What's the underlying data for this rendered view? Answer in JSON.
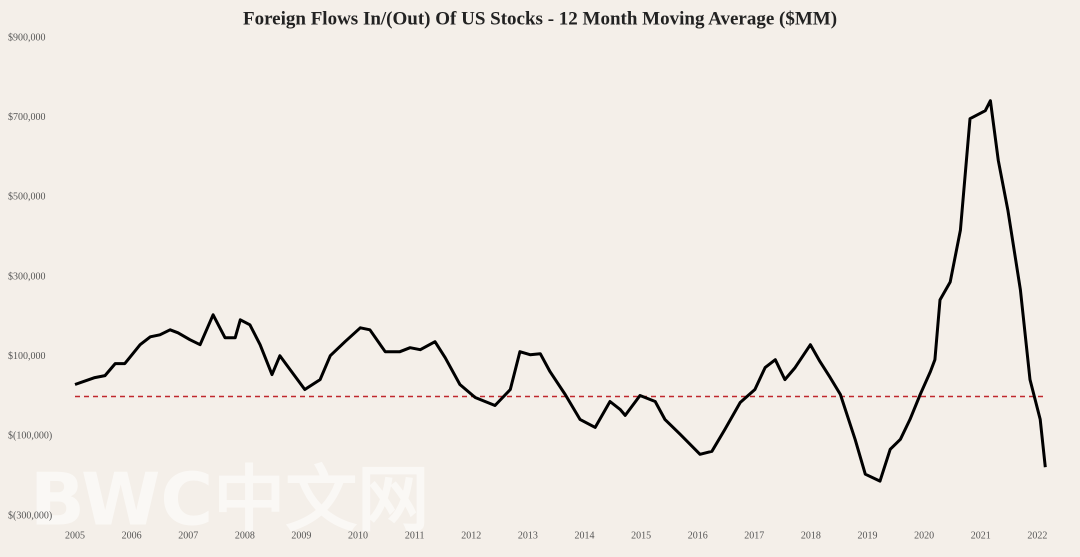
{
  "chart_data": {
    "type": "line",
    "title": "Foreign Flows In/(Out) Of US Stocks  - 12 Month Moving Average ($MM)",
    "watermark": "BWC中文网",
    "xlim": [
      2005,
      2022.4
    ],
    "xticks": [
      2005,
      2006,
      2007,
      2008,
      2009,
      2010,
      2011,
      2012,
      2013,
      2014,
      2015,
      2016,
      2017,
      2018,
      2019,
      2020,
      2021,
      2022
    ],
    "ylim": [
      -300000,
      900000
    ],
    "yticks": [
      {
        "value": -300000,
        "label": "$(300,000)"
      },
      {
        "value": -100000,
        "label": "$(100,000)"
      },
      {
        "value": 100000,
        "label": "$100,000"
      },
      {
        "value": 300000,
        "label": "$300,000"
      },
      {
        "value": 500000,
        "label": "$500,000"
      },
      {
        "value": 700000,
        "label": "$700,000"
      },
      {
        "value": 900000,
        "label": "$900,000"
      }
    ],
    "reference_line": {
      "value": 0,
      "color": "#c0282d"
    },
    "series": [
      {
        "color": "#000000",
        "x": [
          2005.0,
          2005.35,
          2005.53,
          2005.71,
          2005.88,
          2006.15,
          2006.33,
          2006.5,
          2006.68,
          2006.82,
          2007.03,
          2007.21,
          2007.44,
          2007.65,
          2007.83,
          2007.92,
          2008.09,
          2008.27,
          2008.48,
          2008.62,
          2008.8,
          2009.06,
          2009.33,
          2009.51,
          2009.77,
          2010.04,
          2010.21,
          2010.48,
          2010.74,
          2010.92,
          2011.1,
          2011.36,
          2011.54,
          2011.8,
          2012.07,
          2012.42,
          2012.69,
          2012.86,
          2013.04,
          2013.22,
          2013.39,
          2013.66,
          2013.92,
          2014.19,
          2014.45,
          2014.63,
          2014.72,
          2014.98,
          2015.25,
          2015.42,
          2015.69,
          2016.04,
          2016.25,
          2016.48,
          2016.75,
          2017.01,
          2017.19,
          2017.37,
          2017.54,
          2017.72,
          2017.99,
          2018.16,
          2018.34,
          2018.52,
          2018.78,
          2018.96,
          2019.22,
          2019.4,
          2019.58,
          2019.75,
          2019.93,
          2020.11,
          2020.19,
          2020.28,
          2020.46,
          2020.64,
          2020.81,
          2021.08,
          2021.17,
          2021.31,
          2021.48,
          2021.7,
          2021.87,
          2022.05,
          2022.14
        ],
        "values": [
          30000,
          47500,
          52500,
          82500,
          82500,
          130000,
          150000,
          155000,
          167500,
          160000,
          142500,
          130000,
          205000,
          147500,
          147500,
          192500,
          180000,
          130000,
          55000,
          102500,
          67500,
          17500,
          42500,
          102500,
          137500,
          172500,
          167500,
          112500,
          112500,
          122500,
          117500,
          137500,
          97500,
          30000,
          -2500,
          -22500,
          17500,
          112500,
          105000,
          107500,
          62500,
          5000,
          -57500,
          -77500,
          -12500,
          -32500,
          -47500,
          2500,
          -12500,
          -57500,
          -95000,
          -145000,
          -137500,
          -82500,
          -15000,
          17500,
          72500,
          92500,
          42500,
          72500,
          130000,
          87500,
          47500,
          5000,
          -107500,
          -195000,
          -212500,
          -132500,
          -107500,
          -57500,
          5000,
          62500,
          92500,
          242500,
          287500,
          417500,
          697500,
          717500,
          742500,
          592500,
          467500,
          267500,
          42500,
          -57500,
          -177500
        ]
      }
    ]
  }
}
